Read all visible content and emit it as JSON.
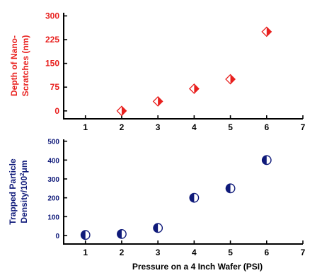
{
  "colors": {
    "top_series": "#e8201e",
    "bottom_series": "#0f1a7a",
    "axis": "#000000"
  },
  "chart_data": [
    {
      "type": "scatter",
      "ylabel_line1": "Depth of Nano-",
      "ylabel_line2": "Scratches (nm)",
      "x_ticks": [
        "1",
        "2",
        "3",
        "4",
        "5",
        "6",
        "7"
      ],
      "y_ticks": [
        "0",
        "75",
        "150",
        "225",
        "300"
      ],
      "xlim": [
        0.4,
        7
      ],
      "ylim": [
        -25,
        310
      ],
      "marker": "half-filled-diamond",
      "x": [
        2,
        3,
        4,
        5,
        6
      ],
      "y": [
        0,
        30,
        70,
        100,
        250
      ]
    },
    {
      "type": "scatter",
      "ylabel_line1": "Trapped Particle",
      "ylabel_line2": "Density/100",
      "ylabel_sup": "2",
      "ylabel_unit": "μm",
      "xlabel": "Pressure on a 4 Inch Wafer (PSI)",
      "x_ticks": [
        "1",
        "2",
        "3",
        "4",
        "5",
        "6",
        "7"
      ],
      "y_ticks": [
        "0",
        "100",
        "200",
        "300",
        "400",
        "500"
      ],
      "xlim": [
        0.4,
        7
      ],
      "ylim": [
        -45,
        510
      ],
      "marker": "half-filled-circle",
      "x": [
        1,
        2,
        3,
        4,
        5,
        6
      ],
      "y": [
        3,
        8,
        40,
        200,
        250,
        400
      ]
    }
  ]
}
